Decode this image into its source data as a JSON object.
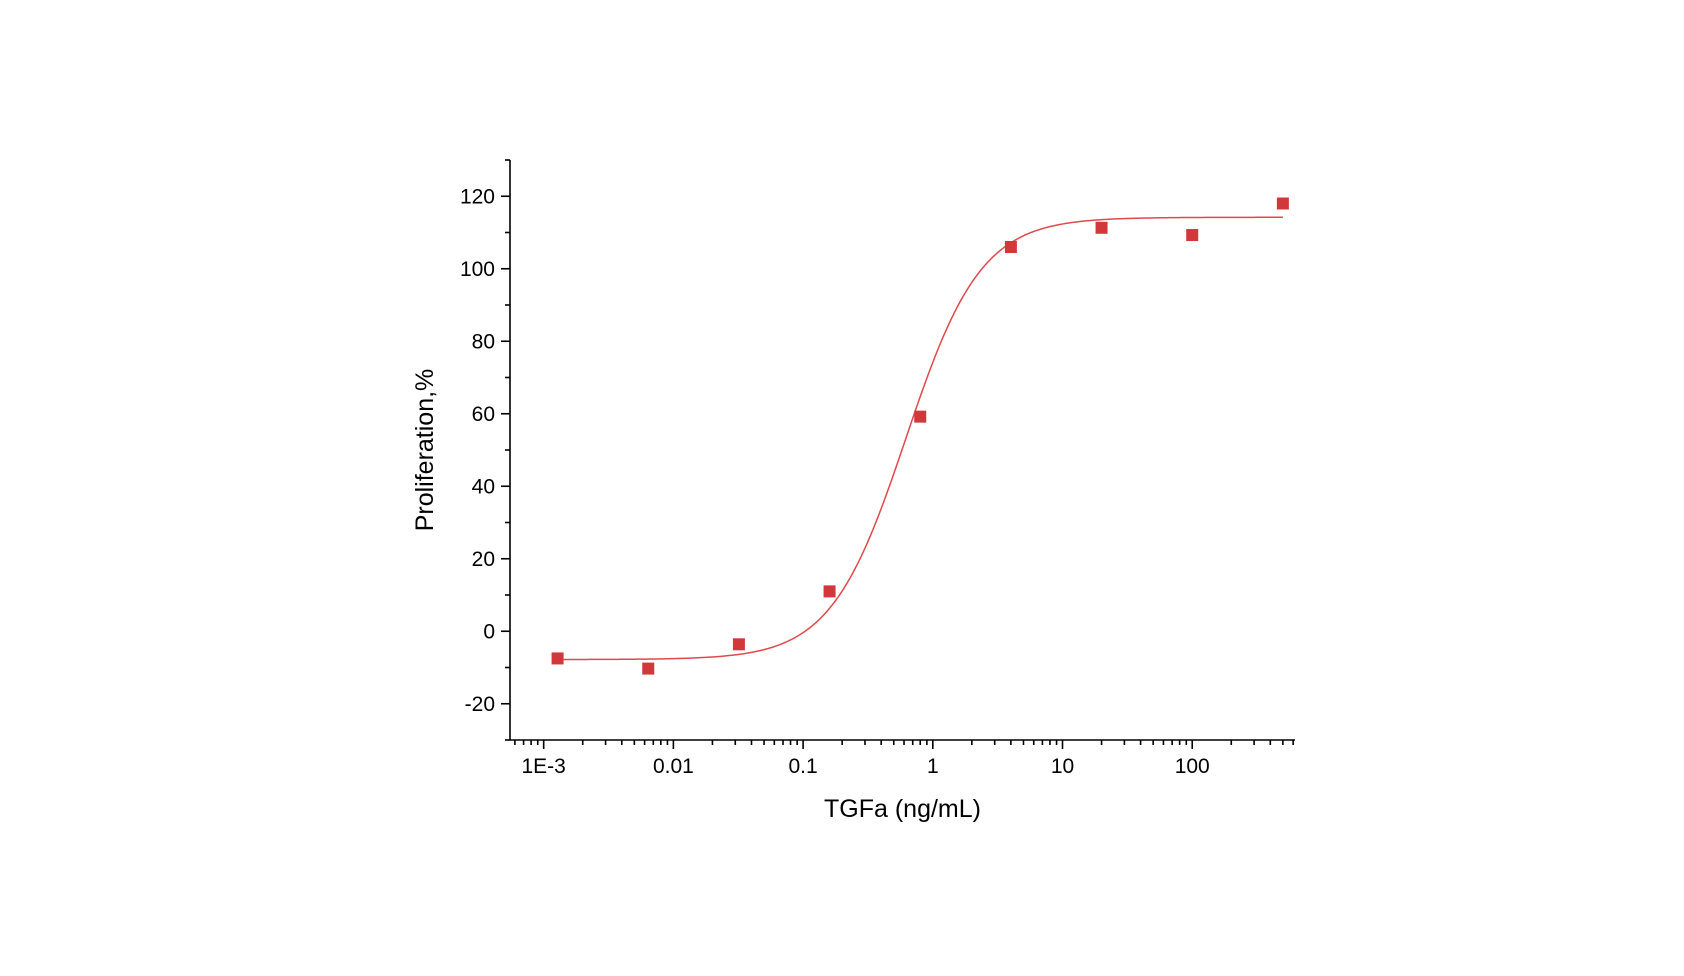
{
  "chart_data": {
    "type": "scatter",
    "title": "",
    "xlabel": "TGFa (ng/mL)",
    "ylabel": "Proliferation,%",
    "x_scale": "log",
    "xlim": [
      0.00055,
      620
    ],
    "ylim": [
      -30,
      130
    ],
    "x_ticks": [
      {
        "value": 0.001,
        "label": "1E-3"
      },
      {
        "value": 0.01,
        "label": "0.01"
      },
      {
        "value": 0.1,
        "label": "0.1"
      },
      {
        "value": 1,
        "label": "1"
      },
      {
        "value": 10,
        "label": "10"
      },
      {
        "value": 100,
        "label": "100"
      }
    ],
    "y_ticks": [
      {
        "value": -20,
        "label": "-20"
      },
      {
        "value": 0,
        "label": "0"
      },
      {
        "value": 20,
        "label": "20"
      },
      {
        "value": 40,
        "label": "40"
      },
      {
        "value": 60,
        "label": "60"
      },
      {
        "value": 80,
        "label": "80"
      },
      {
        "value": 100,
        "label": "100"
      },
      {
        "value": 120,
        "label": "120"
      }
    ],
    "grid": false,
    "series": [
      {
        "marker": "square",
        "color": "#d0383c",
        "points": [
          {
            "x": 0.00128,
            "y": -7.5
          },
          {
            "x": 0.0064,
            "y": -10.3
          },
          {
            "x": 0.032,
            "y": -3.6
          },
          {
            "x": 0.16,
            "y": 11.0
          },
          {
            "x": 0.8,
            "y": 59.2
          },
          {
            "x": 4.0,
            "y": 106.0
          },
          {
            "x": 20,
            "y": 111.3
          },
          {
            "x": 100,
            "y": 109.3
          },
          {
            "x": 500,
            "y": 118.0
          }
        ]
      }
    ],
    "fit_curve": {
      "model": "4PL",
      "color": "#e0484c",
      "bottom": -7.8,
      "top": 114.2,
      "ec50": 0.62,
      "hill": 1.5,
      "x_range": [
        0.00128,
        500
      ]
    }
  }
}
